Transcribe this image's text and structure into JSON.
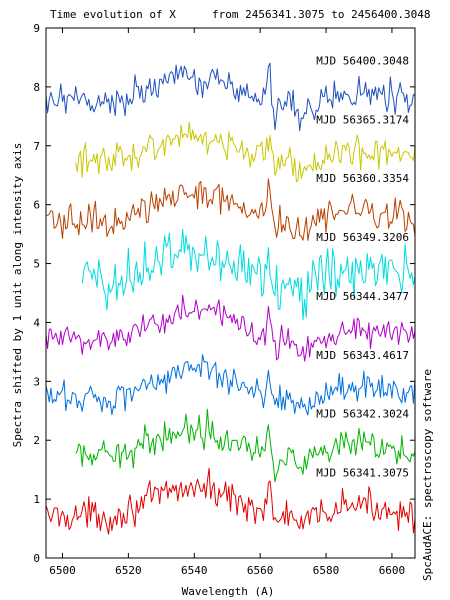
{
  "chart_data": {
    "type": "line",
    "title": "Time evolution of X",
    "subtitle": "from 2456341.3075 to 2456400.3048",
    "xlabel": "Wavelength (A)",
    "ylabel": "Spectra shifted by 1 unit along intensity axis",
    "credit": "SpcAudACE: spectroscopy software",
    "xlim": [
      6495,
      6607
    ],
    "ylim": [
      0,
      9
    ],
    "x_ticks": [
      6500,
      6520,
      6540,
      6560,
      6580,
      6600
    ],
    "y_ticks": [
      0,
      1,
      2,
      3,
      4,
      5,
      6,
      7,
      8,
      9
    ],
    "grid": false,
    "series": [
      {
        "name": "MJD 56341.3075",
        "color": "#e00000",
        "offset": 0,
        "x_start": 6495
      },
      {
        "name": "MJD 56342.3024",
        "color": "#00b400",
        "offset": 1,
        "x_start": 6504
      },
      {
        "name": "MJD 56343.4617",
        "color": "#0070e0",
        "offset": 2,
        "x_start": 6495
      },
      {
        "name": "MJD 56344.3477",
        "color": "#b000c8",
        "offset": 3,
        "x_start": 6495
      },
      {
        "name": "MJD 56349.3206",
        "color": "#00dcdc",
        "offset": 4,
        "x_start": 6506
      },
      {
        "name": "MJD 56360.3354",
        "color": "#b84000",
        "offset": 5,
        "x_start": 6495
      },
      {
        "name": "MJD 56365.3174",
        "color": "#c8c800",
        "offset": 6,
        "x_start": 6504
      },
      {
        "name": "MJD 56400.3048",
        "color": "#2050c0",
        "offset": 7,
        "x_start": 6495
      }
    ]
  }
}
